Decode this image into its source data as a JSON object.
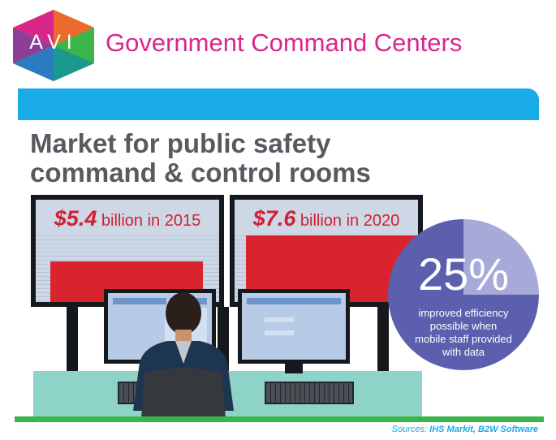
{
  "header": {
    "logo_text": "AVI",
    "title": "Government Command Centers"
  },
  "headline": {
    "line1": "Market for public safety",
    "line2": "command & control rooms"
  },
  "monitors": [
    {
      "amount": "$5.4",
      "label": " billion in 2015",
      "bar_fraction": 0.54
    },
    {
      "amount": "$7.6",
      "label": " billion in 2020",
      "bar_fraction": 0.76
    }
  ],
  "stat": {
    "value": "25%",
    "line1": "improved efficiency",
    "line2": "possible when",
    "line3": "mobile staff provided",
    "line4": "with data",
    "pie_fraction": 0.25
  },
  "sources": {
    "prefix": "Sources: ",
    "names": "IHS Markit, B2W Software"
  },
  "colors": {
    "brand_pink": "#d9268b",
    "accent_blue": "#19aae8",
    "headline_gray": "#555b60",
    "bar_red": "#d9232e",
    "circle_purple": "#5b5fae",
    "desk_teal": "#8dd3c7",
    "base_green": "#3ab54a"
  }
}
